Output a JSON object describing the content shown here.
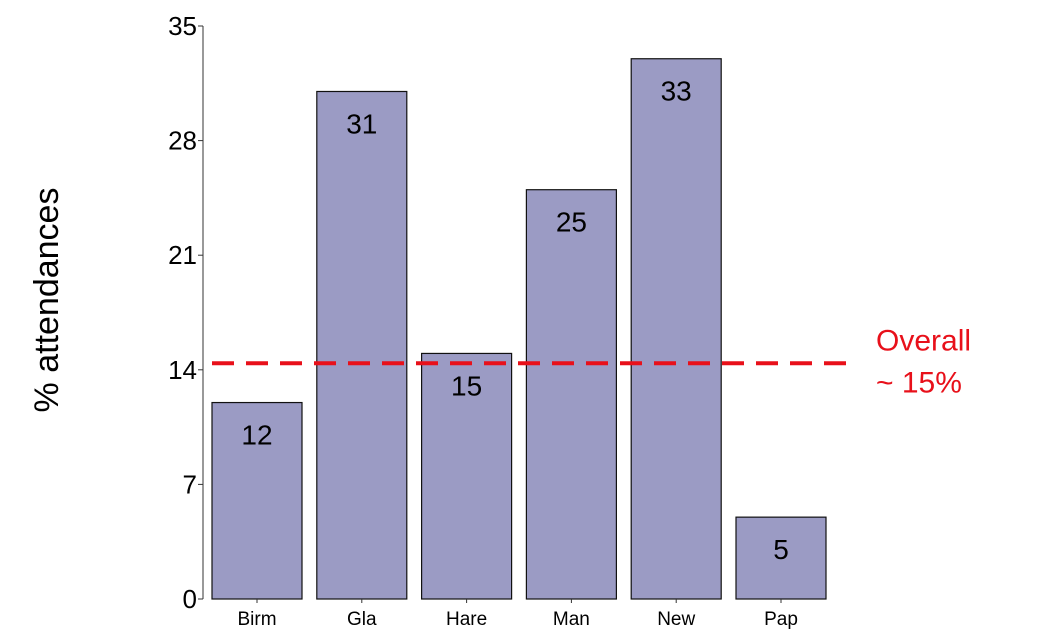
{
  "chart_data": {
    "type": "bar",
    "title": "",
    "xlabel": "",
    "ylabel": "% attendances",
    "categories": [
      "Birm",
      "Gla",
      "Hare",
      "Man",
      "New",
      "Pap"
    ],
    "values": [
      12,
      31,
      15,
      25,
      33,
      5
    ],
    "data_labels": [
      "12",
      "31",
      "15",
      "25",
      "33",
      "5"
    ],
    "ylim": [
      0,
      35
    ],
    "yticks": [
      0,
      7,
      14,
      21,
      28,
      35
    ],
    "grid": false,
    "bar_color": "#9b9bc4",
    "reference_line": {
      "value": 14.4,
      "color": "#e8101a",
      "style": "dashed",
      "label_line1": "Overall",
      "label_line2": "~ 15%"
    }
  }
}
